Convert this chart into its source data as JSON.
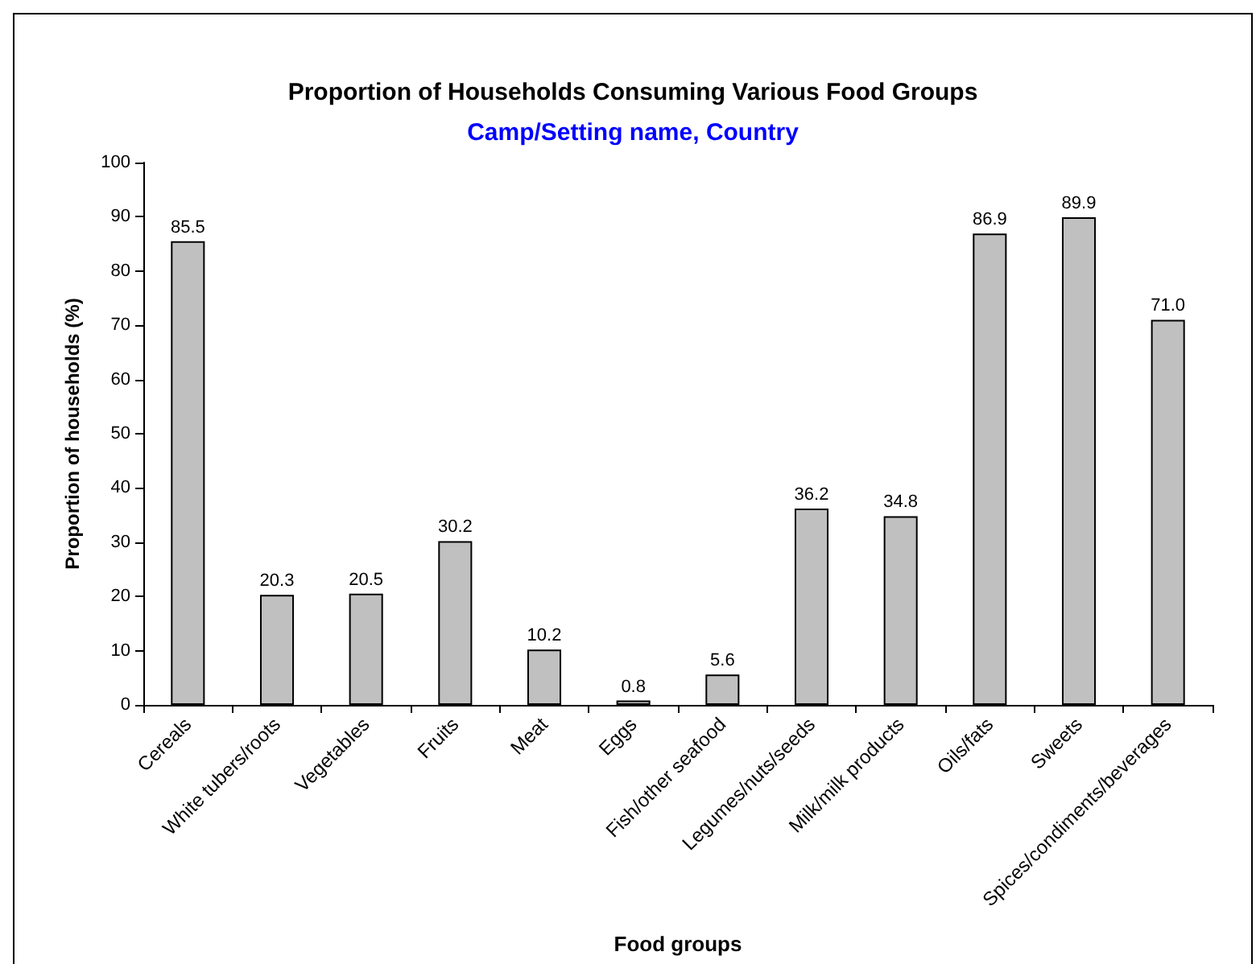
{
  "chart_data": {
    "type": "bar",
    "title": "Proportion of Households Consuming Various Food Groups",
    "subtitle": "Camp/Setting name, Country",
    "xlabel": "Food groups",
    "ylabel": "Proportion of households (%)",
    "categories": [
      "Cereals",
      "White tubers/roots",
      "Vegetables",
      "Fruits",
      "Meat",
      "Eggs",
      "Fish/other seafood",
      "Legumes/nuts/seeds",
      "Milk/milk products",
      "Oils/fats",
      "Sweets",
      "Spices/condiments/beverages"
    ],
    "values": [
      85.5,
      20.3,
      20.5,
      30.2,
      10.2,
      0.8,
      5.6,
      36.2,
      34.8,
      86.9,
      89.9,
      71.0
    ],
    "value_labels": [
      "85.5",
      "20.3",
      "20.5",
      "30.2",
      "10.2",
      "0.8",
      "5.6",
      "36.2",
      "34.8",
      "86.9",
      "89.9",
      "71.0"
    ],
    "color": "#c0c0c0",
    "ylim": [
      0,
      100
    ],
    "yticks": [
      0,
      10,
      20,
      30,
      40,
      50,
      60,
      70,
      80,
      90,
      100
    ],
    "grid": false
  }
}
